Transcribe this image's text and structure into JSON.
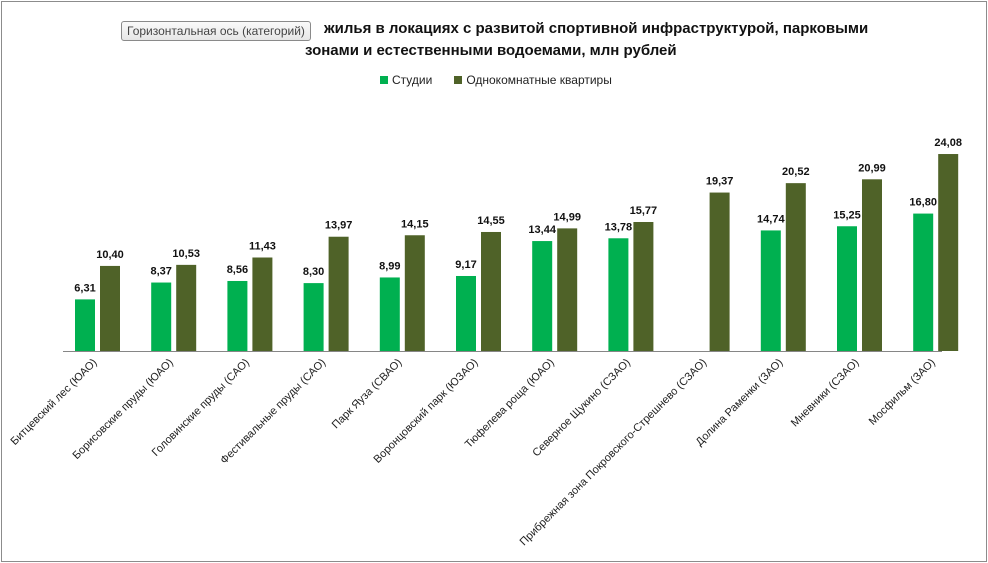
{
  "axis_button": "Горизонтальная ось (категорий)",
  "chart_data": {
    "type": "bar",
    "title_line1": "жилья в локациях с развитой спортивной инфраструктурой, парковыми",
    "title_line2": "зонами и естественными водоемами, млн рублей",
    "categories": [
      "Битцевский лес (ЮАО)",
      "Борисовские пруды (ЮАО)",
      "Головинские пруды (САО)",
      "Фестивальные пруды (САО)",
      "Парк Яуза (СВАО)",
      "Воронцовский парк (ЮЗАО)",
      "Тюфелева роща (ЮАО)",
      "Северное Щукино (СЗАО)",
      "Прибрежная зона Покровского-Стрешнево (СЗАО)",
      "Долина Раменки (ЗАО)",
      "Мневники (СЗАО)",
      "Мосфильм (ЗАО)"
    ],
    "series": [
      {
        "name": "Студии",
        "color": "#00b050",
        "values": [
          6.31,
          8.37,
          8.56,
          8.3,
          8.99,
          9.17,
          13.44,
          13.78,
          null,
          14.74,
          15.25,
          16.8
        ],
        "labels": [
          "6,31",
          "8,37",
          "8,56",
          "8,30",
          "8,99",
          "9,17",
          "13,44",
          "13,78",
          "",
          "14,74",
          "15,25",
          "16,80"
        ]
      },
      {
        "name": "Однокомнатные квартиры",
        "color": "#4f6228",
        "values": [
          10.4,
          10.53,
          11.43,
          13.97,
          14.15,
          14.55,
          14.99,
          15.77,
          19.37,
          20.52,
          20.99,
          24.08
        ],
        "labels": [
          "10,40",
          "10,53",
          "11,43",
          "13,97",
          "14,15",
          "14,55",
          "14,99",
          "15,77",
          "19,37",
          "20,52",
          "20,99",
          "24,08"
        ]
      }
    ],
    "ylim": [
      0,
      25
    ],
    "grid": false,
    "legend": "top"
  }
}
